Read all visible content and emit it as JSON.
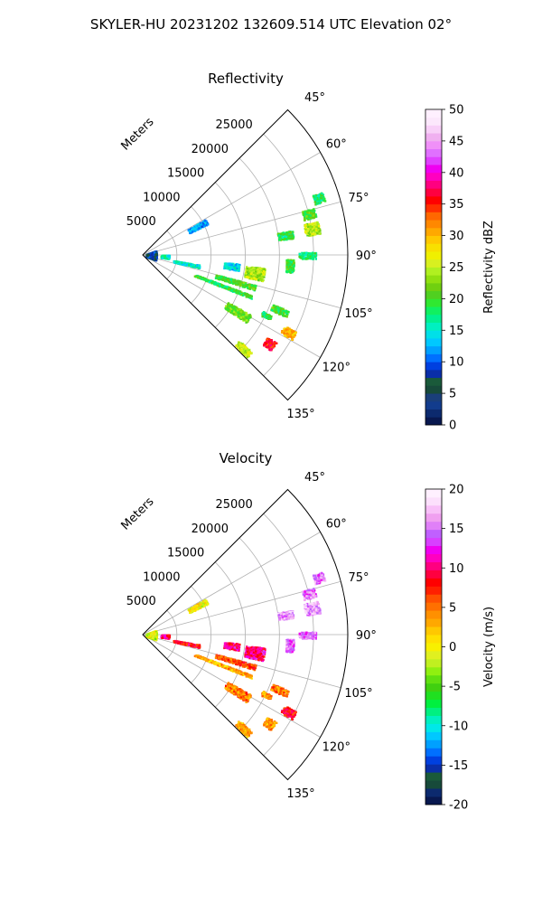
{
  "figure": {
    "suptitle": "SKYLER-HU  20231202  132609.514 UTC Elevation 02°"
  },
  "chart_data": [
    {
      "type": "heatmap",
      "projection": "polar-sector",
      "title": "Reflectivity",
      "radial_axis_label": "Meters",
      "radial_ticks": [
        5000,
        10000,
        15000,
        20000,
        25000
      ],
      "radial_range": [
        0,
        30000
      ],
      "angle_ticks": [
        "45°",
        "60°",
        "75°",
        "90°",
        "105°",
        "120°",
        "135°"
      ],
      "angle_values": [
        45,
        60,
        75,
        90,
        105,
        120,
        135
      ],
      "angle_range": [
        45,
        135
      ],
      "colorbar": {
        "label": "Reflectivity dBZ",
        "range": [
          0,
          50
        ],
        "ticks": [
          0,
          5,
          10,
          15,
          20,
          25,
          30,
          35,
          40,
          45,
          50
        ],
        "colors": [
          "#08184f",
          "#0c2a6e",
          "#123c8d",
          "#1a3f7a",
          "#174a3a",
          "#1a5a3a",
          "#0a2ea8",
          "#0040e0",
          "#0070ff",
          "#00a0ff",
          "#00c8ff",
          "#00e0e8",
          "#00f0c0",
          "#00f090",
          "#10f060",
          "#30e830",
          "#50d020",
          "#70d010",
          "#90e010",
          "#b0f020",
          "#d8f020",
          "#f0f000",
          "#f8e000",
          "#ffc800",
          "#ffa800",
          "#ff8800",
          "#ff6800",
          "#ff3000",
          "#ff0000",
          "#ff0040",
          "#ff0080",
          "#ff00c0",
          "#f000f0",
          "#e040ff",
          "#e070ff",
          "#f090f8",
          "#f0b0f0",
          "#f8d0f8",
          "#fce8fc",
          "#fff0ff"
        ]
      },
      "echo_regions": [
        {
          "az": 99,
          "r": 16500,
          "dr": 2800,
          "da": 6,
          "value": 24
        },
        {
          "az": 97,
          "r": 13000,
          "dr": 2200,
          "da": 4,
          "value": 14
        },
        {
          "az": 106,
          "r": 14000,
          "dr": 6000,
          "da": 2.5,
          "value": 20
        },
        {
          "az": 111,
          "r": 12500,
          "dr": 9000,
          "da": 1.6,
          "value": 19
        },
        {
          "az": 101,
          "r": 6500,
          "dr": 4000,
          "da": 3,
          "value": 15
        },
        {
          "az": 118,
          "r": 24000,
          "dr": 2000,
          "da": 3,
          "value": 30
        },
        {
          "az": 125,
          "r": 22500,
          "dr": 1500,
          "da": 3.5,
          "value": 36
        },
        {
          "az": 133,
          "r": 20000,
          "dr": 2500,
          "da": 3,
          "value": 25
        },
        {
          "az": 137,
          "r": 16500,
          "dr": 1800,
          "da": 2.5,
          "value": 20
        },
        {
          "az": 81,
          "r": 25000,
          "dr": 2200,
          "da": 4,
          "value": 24
        },
        {
          "az": 76,
          "r": 25000,
          "dr": 1800,
          "da": 3,
          "value": 20
        },
        {
          "az": 72,
          "r": 27000,
          "dr": 1500,
          "da": 3,
          "value": 18
        },
        {
          "az": 82,
          "r": 21000,
          "dr": 2200,
          "da": 3,
          "value": 19
        },
        {
          "az": 90,
          "r": 24000,
          "dr": 2500,
          "da": 2.2,
          "value": 18
        },
        {
          "az": 94,
          "r": 21500,
          "dr": 1200,
          "da": 5,
          "value": 20
        },
        {
          "az": 112,
          "r": 21500,
          "dr": 2500,
          "da": 2.5,
          "value": 20
        },
        {
          "az": 62,
          "r": 9000,
          "dr": 3000,
          "da": 4,
          "value": 12
        },
        {
          "az": 90,
          "r": 1200,
          "dr": 1500,
          "da": 40,
          "value": 8
        },
        {
          "az": 93,
          "r": 3200,
          "dr": 1200,
          "da": 8,
          "value": 16
        },
        {
          "az": 121,
          "r": 16000,
          "dr": 4000,
          "da": 4,
          "value": 22
        },
        {
          "az": 116,
          "r": 20000,
          "dr": 1500,
          "da": 2,
          "value": 19
        }
      ]
    },
    {
      "type": "heatmap",
      "projection": "polar-sector",
      "title": "Velocity",
      "radial_axis_label": "Meters",
      "radial_ticks": [
        5000,
        10000,
        15000,
        20000,
        25000
      ],
      "radial_range": [
        0,
        30000
      ],
      "angle_ticks": [
        "45°",
        "60°",
        "75°",
        "90°",
        "105°",
        "120°",
        "135°"
      ],
      "angle_values": [
        45,
        60,
        75,
        90,
        105,
        120,
        135
      ],
      "angle_range": [
        45,
        135
      ],
      "colorbar": {
        "label": "Velocity (m/s)",
        "range": [
          -20,
          20
        ],
        "ticks": [
          -20,
          -15,
          -10,
          -5,
          0,
          5,
          10,
          15,
          20
        ],
        "colors": [
          "#08184f",
          "#0c2a6e",
          "#174a3a",
          "#1a5a3a",
          "#0a2ea8",
          "#0040e0",
          "#0070ff",
          "#00a0ff",
          "#00c8ff",
          "#00e8e8",
          "#00f0c0",
          "#00f080",
          "#00f040",
          "#20e020",
          "#40d010",
          "#60e010",
          "#90f010",
          "#c0f020",
          "#e0f020",
          "#f8f000",
          "#ffe000",
          "#ffc800",
          "#ffa800",
          "#ff9000",
          "#ff7000",
          "#ff5000",
          "#ff2000",
          "#ff0000",
          "#ff0040",
          "#ff0080",
          "#ff00c0",
          "#f000f0",
          "#d840ff",
          "#c060ff",
          "#e080f8",
          "#f0a0f0",
          "#f8c0f8",
          "#fce0fc",
          "#fff0ff"
        ]
      },
      "echo_regions": [
        {
          "az": 99,
          "r": 16500,
          "dr": 2800,
          "da": 6,
          "value": 10
        },
        {
          "az": 97,
          "r": 13000,
          "dr": 2200,
          "da": 4,
          "value": 10
        },
        {
          "az": 106,
          "r": 14000,
          "dr": 6000,
          "da": 2.5,
          "value": 6
        },
        {
          "az": 111,
          "r": 12500,
          "dr": 9000,
          "da": 1.6,
          "value": 3
        },
        {
          "az": 101,
          "r": 6500,
          "dr": 4000,
          "da": 3,
          "value": 8
        },
        {
          "az": 118,
          "r": 24000,
          "dr": 2000,
          "da": 3,
          "value": 8
        },
        {
          "az": 125,
          "r": 22500,
          "dr": 1500,
          "da": 3.5,
          "value": 4
        },
        {
          "az": 133,
          "r": 20000,
          "dr": 2500,
          "da": 3,
          "value": 3
        },
        {
          "az": 137,
          "r": 16500,
          "dr": 1800,
          "da": 2.5,
          "value": 1
        },
        {
          "az": 81,
          "r": 25000,
          "dr": 2200,
          "da": 4,
          "value": 16
        },
        {
          "az": 76,
          "r": 25000,
          "dr": 1800,
          "da": 3,
          "value": 15
        },
        {
          "az": 72,
          "r": 27000,
          "dr": 1500,
          "da": 3,
          "value": 15
        },
        {
          "az": 82,
          "r": 21000,
          "dr": 2200,
          "da": 3,
          "value": 16
        },
        {
          "az": 90,
          "r": 24000,
          "dr": 2500,
          "da": 2.2,
          "value": 15
        },
        {
          "az": 94,
          "r": 21500,
          "dr": 1200,
          "da": 5,
          "value": 15
        },
        {
          "az": 112,
          "r": 21500,
          "dr": 2500,
          "da": 2.5,
          "value": 5
        },
        {
          "az": 62,
          "r": 9000,
          "dr": 3000,
          "da": 4,
          "value": 0
        },
        {
          "az": 90,
          "r": 1200,
          "dr": 1500,
          "da": 40,
          "value": -1
        },
        {
          "az": 93,
          "r": 3200,
          "dr": 1200,
          "da": 8,
          "value": 10
        },
        {
          "az": 121,
          "r": 16000,
          "dr": 4000,
          "da": 4,
          "value": 5
        },
        {
          "az": 116,
          "r": 20000,
          "dr": 1500,
          "da": 2,
          "value": 4
        }
      ]
    }
  ]
}
